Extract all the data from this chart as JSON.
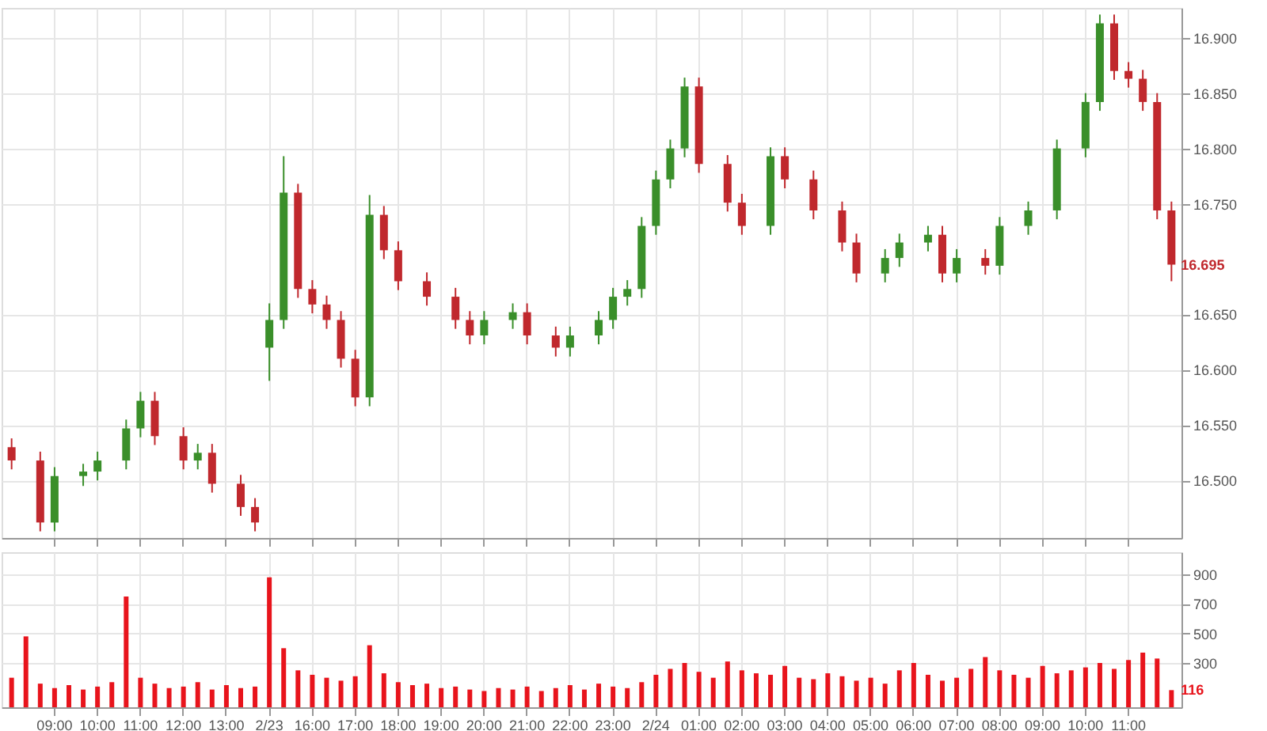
{
  "chart_data": [
    {
      "type": "candlestick",
      "ylim": [
        16.448,
        16.927
      ],
      "yticks": [
        {
          "value": 16.5,
          "label": "16.500"
        },
        {
          "value": 16.55,
          "label": "16.550"
        },
        {
          "value": 16.6,
          "label": "16.600"
        },
        {
          "value": 16.65,
          "label": "16.650"
        },
        {
          "value": 16.75,
          "label": "16.750"
        },
        {
          "value": 16.8,
          "label": "16.800"
        },
        {
          "value": 16.85,
          "label": "16.850"
        },
        {
          "value": 16.9,
          "label": "16.900"
        }
      ],
      "categories": [
        null,
        null,
        null,
        null,
        null,
        null,
        null,
        null,
        null,
        null,
        null,
        null,
        null,
        null,
        null,
        null,
        null,
        null,
        null,
        null,
        null,
        null,
        null,
        null,
        null,
        null,
        null,
        null,
        null,
        null,
        null,
        null,
        null,
        null,
        null,
        null,
        null,
        null,
        null,
        null,
        null,
        null,
        null,
        null,
        null,
        null,
        null,
        null,
        null,
        null,
        null,
        null,
        null,
        null,
        null,
        null,
        null,
        null,
        null,
        null,
        null,
        null,
        null,
        null,
        null,
        null,
        null,
        null,
        null,
        null,
        null,
        null,
        null,
        null,
        null,
        null,
        null,
        null,
        null,
        null,
        null,
        null
      ],
      "grid": true,
      "ohlc": [
        [
          16.53,
          16.538,
          16.51,
          16.518
        ],
        null,
        [
          16.518,
          16.526,
          16.454,
          16.462
        ],
        [
          16.462,
          16.512,
          16.454,
          16.504
        ],
        null,
        [
          16.504,
          16.515,
          16.495,
          16.508
        ],
        [
          16.508,
          16.526,
          16.5,
          16.518
        ],
        null,
        [
          16.518,
          16.555,
          16.51,
          16.547
        ],
        [
          16.547,
          16.58,
          16.539,
          16.572
        ],
        [
          16.572,
          16.58,
          16.532,
          16.54
        ],
        null,
        [
          16.54,
          16.548,
          16.51,
          16.518
        ],
        [
          16.518,
          16.533,
          16.51,
          16.525
        ],
        [
          16.525,
          16.533,
          16.489,
          16.497
        ],
        null,
        [
          16.497,
          16.505,
          16.468,
          16.476
        ],
        [
          16.476,
          16.484,
          16.454,
          16.462
        ],
        [
          16.62,
          16.66,
          16.59,
          16.645
        ],
        [
          16.645,
          16.793,
          16.637,
          16.76
        ],
        [
          16.76,
          16.768,
          16.665,
          16.673
        ],
        [
          16.673,
          16.681,
          16.651,
          16.659
        ],
        [
          16.659,
          16.667,
          16.637,
          16.645
        ],
        [
          16.645,
          16.653,
          16.602,
          16.61
        ],
        [
          16.61,
          16.618,
          16.567,
          16.575
        ],
        [
          16.575,
          16.758,
          16.567,
          16.74
        ],
        [
          16.74,
          16.748,
          16.7,
          16.708
        ],
        [
          16.708,
          16.716,
          16.672,
          16.68
        ],
        null,
        [
          16.68,
          16.688,
          16.658,
          16.666
        ],
        null,
        [
          16.666,
          16.674,
          16.637,
          16.645
        ],
        [
          16.645,
          16.653,
          16.623,
          16.631
        ],
        [
          16.631,
          16.653,
          16.623,
          16.645
        ],
        null,
        [
          16.645,
          16.66,
          16.637,
          16.652
        ],
        [
          16.652,
          16.66,
          16.623,
          16.631
        ],
        null,
        [
          16.631,
          16.639,
          16.612,
          16.62
        ],
        [
          16.62,
          16.639,
          16.612,
          16.631
        ],
        null,
        [
          16.631,
          16.653,
          16.623,
          16.645
        ],
        [
          16.645,
          16.674,
          16.637,
          16.666
        ],
        [
          16.666,
          16.681,
          16.658,
          16.673
        ],
        [
          16.673,
          16.738,
          16.665,
          16.73
        ],
        [
          16.73,
          16.78,
          16.722,
          16.772
        ],
        [
          16.772,
          16.808,
          16.764,
          16.8
        ],
        [
          16.8,
          16.864,
          16.792,
          16.856
        ],
        [
          16.856,
          16.864,
          16.778,
          16.786
        ],
        null,
        [
          16.786,
          16.794,
          16.743,
          16.751
        ],
        [
          16.751,
          16.759,
          16.722,
          16.73
        ],
        null,
        [
          16.73,
          16.801,
          16.722,
          16.793
        ],
        [
          16.793,
          16.801,
          16.764,
          16.772
        ],
        null,
        [
          16.772,
          16.78,
          16.736,
          16.744
        ],
        null,
        [
          16.744,
          16.752,
          16.707,
          16.715
        ],
        [
          16.715,
          16.723,
          16.679,
          16.687
        ],
        null,
        [
          16.687,
          16.709,
          16.679,
          16.701
        ],
        [
          16.701,
          16.723,
          16.693,
          16.715
        ],
        null,
        [
          16.715,
          16.73,
          16.707,
          16.722
        ],
        [
          16.722,
          16.73,
          16.679,
          16.687
        ],
        [
          16.687,
          16.709,
          16.679,
          16.701
        ],
        null,
        [
          16.701,
          16.709,
          16.686,
          16.694
        ],
        [
          16.694,
          16.738,
          16.686,
          16.73
        ],
        null,
        [
          16.73,
          16.752,
          16.722,
          16.744
        ],
        null,
        [
          16.744,
          16.808,
          16.736,
          16.8
        ],
        null,
        [
          16.8,
          16.85,
          16.792,
          16.842
        ],
        [
          16.842,
          16.921,
          16.834,
          16.913
        ],
        [
          16.913,
          16.921,
          16.862,
          16.87
        ],
        [
          16.87,
          16.878,
          16.855,
          16.863
        ],
        [
          16.863,
          16.871,
          16.834,
          16.842
        ],
        [
          16.842,
          16.85,
          16.736,
          16.744
        ],
        [
          16.744,
          16.752,
          16.68,
          16.695
        ]
      ],
      "colors": [
        "#c0282d",
        null,
        "#c0282d",
        "#3a8f2a",
        null,
        "#3a8f2a",
        "#3a8f2a",
        null,
        "#3a8f2a",
        "#3a8f2a",
        "#c0282d",
        null,
        "#c0282d",
        "#3a8f2a",
        "#c0282d",
        null,
        "#c0282d",
        "#c0282d",
        "#3a8f2a",
        "#3a8f2a",
        "#c0282d",
        "#c0282d",
        "#c0282d",
        "#c0282d",
        "#c0282d",
        "#3a8f2a",
        "#c0282d",
        "#c0282d",
        null,
        "#c0282d",
        null,
        "#c0282d",
        "#c0282d",
        "#3a8f2a",
        null,
        "#3a8f2a",
        "#c0282d",
        null,
        "#c0282d",
        "#3a8f2a",
        null,
        "#3a8f2a",
        "#3a8f2a",
        "#3a8f2a",
        "#3a8f2a",
        "#3a8f2a",
        "#3a8f2a",
        "#3a8f2a",
        "#c0282d",
        null,
        "#c0282d",
        "#c0282d",
        null,
        "#3a8f2a",
        "#c0282d",
        null,
        "#c0282d",
        null,
        "#c0282d",
        "#c0282d",
        null,
        "#3a8f2a",
        "#3a8f2a",
        null,
        "#3a8f2a",
        "#c0282d",
        "#3a8f2a",
        null,
        "#c0282d",
        "#3a8f2a",
        null,
        "#3a8f2a",
        null,
        "#3a8f2a",
        null,
        "#3a8f2a",
        "#3a8f2a",
        "#c0282d",
        "#c0282d",
        "#c0282d",
        "#c0282d",
        "#c0282d"
      ],
      "annotations": [
        "16.695"
      ]
    },
    {
      "type": "bar",
      "ylim": [
        0,
        1050
      ],
      "yticks": [
        300,
        500,
        700,
        900
      ],
      "categories": [
        null,
        null,
        null,
        "09:00",
        null,
        null,
        "10:00",
        null,
        null,
        "11:00",
        null,
        null,
        "12:00",
        null,
        null,
        "13:00",
        null,
        null,
        "2/23",
        null,
        null,
        "16:00",
        null,
        null,
        "17:00",
        null,
        null,
        "18:00",
        null,
        null,
        "19:00",
        null,
        null,
        "20:00",
        null,
        null,
        "21:00",
        null,
        null,
        "22:00",
        null,
        null,
        "23:00",
        null,
        null,
        "2/24",
        null,
        null,
        "01:00",
        null,
        null,
        "02:00",
        null,
        null,
        "03:00",
        null,
        null,
        "04:00",
        null,
        null,
        "05:00",
        null,
        null,
        "06:00",
        null,
        null,
        "07:00",
        null,
        null,
        "08:00",
        null,
        null,
        "09:00",
        null,
        null,
        "10:00",
        null,
        null,
        "11:00",
        null,
        null,
        null
      ],
      "grid": true,
      "color": "#e8141c",
      "values": [
        200,
        480,
        160,
        130,
        150,
        120,
        140,
        170,
        750,
        200,
        160,
        130,
        140,
        170,
        120,
        150,
        130,
        140,
        880,
        400,
        250,
        220,
        200,
        180,
        210,
        420,
        230,
        170,
        150,
        160,
        130,
        140,
        120,
        110,
        130,
        120,
        140,
        110,
        130,
        150,
        120,
        160,
        140,
        130,
        170,
        220,
        260,
        300,
        240,
        200,
        310,
        250,
        230,
        220,
        280,
        200,
        190,
        230,
        210,
        180,
        200,
        160,
        250,
        300,
        220,
        180,
        200,
        260,
        340,
        250,
        220,
        200,
        280,
        230,
        250,
        270,
        300,
        260,
        320,
        370,
        330,
        116
      ],
      "annotations": [
        "116"
      ]
    }
  ]
}
